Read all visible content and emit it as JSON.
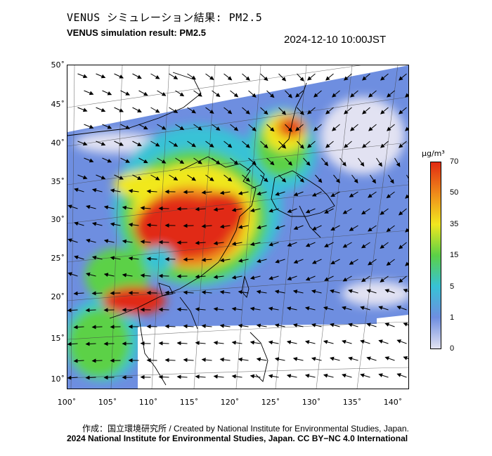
{
  "header": {
    "title_jp": "VENUS シミュレーション結果: PM2.5",
    "title_en": "VENUS simulation result: PM2.5",
    "timestamp": "2024-12-10 10:00JST"
  },
  "map": {
    "lat_labels": [
      "50˚",
      "45˚",
      "40˚",
      "35˚",
      "30˚",
      "25˚",
      "20˚",
      "15˚",
      "10˚"
    ],
    "lon_labels": [
      "100˚",
      "105˚",
      "110˚",
      "115˚",
      "120˚",
      "125˚",
      "130˚",
      "135˚",
      "140˚"
    ],
    "field": "PM2.5 concentration",
    "colors": {
      "very_low": "#e2e2f2",
      "low": "#6e8ee0",
      "medium_low": "#37c2d6",
      "medium": "#5bd146",
      "high": "#f1e81f",
      "very_high": "#ef8a1a",
      "extreme": "#e12a12"
    }
  },
  "colorbar": {
    "unit": "μg/m³",
    "ticks": [
      "70",
      "50",
      "35",
      "15",
      "5",
      "1",
      "0"
    ]
  },
  "footer": {
    "credit_line": "作成：国立環境研究所 / Created by National Institute for Environmental Studies, Japan.",
    "license_line": "2024 National Institute for Environmental Studies, Japan. CC BY−NC 4.0 International"
  }
}
